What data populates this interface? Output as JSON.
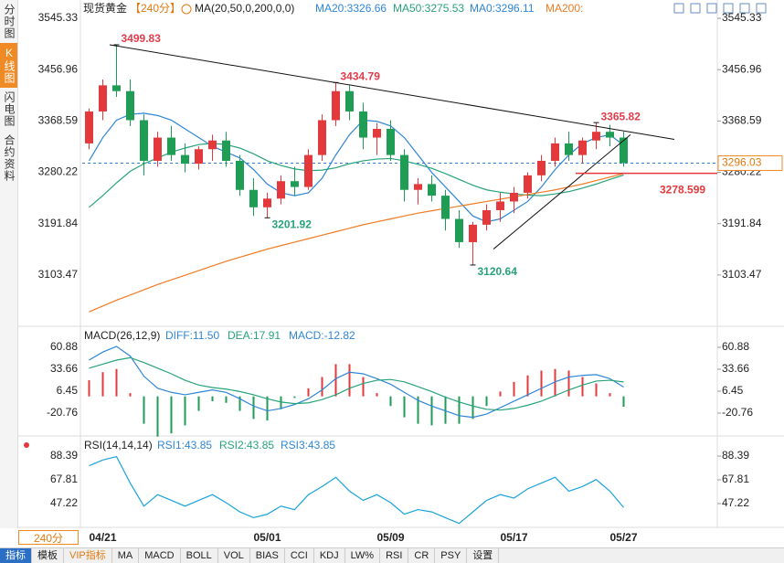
{
  "tabs": [
    "分时图",
    "K线图",
    "闪电图",
    "合约资料"
  ],
  "period": "240分",
  "toolbar": [
    "指标",
    "模板",
    "VIP指标",
    "MA",
    "MACD",
    "BOLL",
    "VOL",
    "BIAS",
    "CCI",
    "KDJ",
    "LW%",
    "RSI",
    "CR",
    "PSY",
    "设置"
  ],
  "chart_data": [
    {
      "type": "candlestick",
      "title": "现货黄金",
      "subtitle": "【240分】",
      "legend": [
        "MA(20,50,0,200,0,0)",
        "MA20:3326.66",
        "MA50:3275.53",
        "MA0:3296.11",
        "MA200:"
      ],
      "categories": [
        null,
        "04/21",
        null,
        null,
        null,
        null,
        null,
        null,
        null,
        null,
        null,
        null,
        null,
        "05/01",
        null,
        null,
        null,
        null,
        null,
        null,
        null,
        null,
        "05/09",
        null,
        null,
        null,
        null,
        null,
        null,
        null,
        null,
        "05/17",
        null,
        null,
        null,
        null,
        null,
        null,
        null,
        "05/27"
      ],
      "open": [
        3330,
        3385,
        3430,
        3420,
        3370,
        3300,
        3340,
        3310,
        3295,
        3320,
        3335,
        3300,
        3250,
        3220,
        3235,
        3265,
        3255,
        3310,
        3370,
        3420,
        3385,
        3340,
        3355,
        3310,
        3250,
        3260,
        3240,
        3200,
        3160,
        3190,
        3215,
        3230,
        3245,
        3275,
        3300,
        3330,
        3310,
        3335,
        3350,
        3340
      ],
      "high": [
        3390,
        3440,
        3499.83,
        3440,
        3380,
        3350,
        3360,
        3330,
        3325,
        3345,
        3350,
        3310,
        3270,
        3245,
        3275,
        3290,
        3320,
        3380,
        3434.79,
        3430,
        3400,
        3365,
        3370,
        3320,
        3270,
        3275,
        3250,
        3215,
        3195,
        3225,
        3245,
        3255,
        3280,
        3310,
        3340,
        3350,
        3340,
        3365.82,
        3362,
        3350
      ],
      "low": [
        3320,
        3370,
        3410,
        3360,
        3275,
        3290,
        3300,
        3280,
        3285,
        3300,
        3290,
        3240,
        3205,
        3201.92,
        3225,
        3240,
        3250,
        3300,
        3360,
        3370,
        3320,
        3310,
        3300,
        3230,
        3225,
        3230,
        3180,
        3150,
        3120.64,
        3180,
        3195,
        3210,
        3235,
        3265,
        3290,
        3300,
        3295,
        3320,
        3325,
        3290
      ],
      "close": [
        3385,
        3430,
        3420,
        3370,
        3300,
        3340,
        3310,
        3295,
        3320,
        3335,
        3300,
        3250,
        3220,
        3235,
        3265,
        3255,
        3310,
        3370,
        3420,
        3385,
        3340,
        3355,
        3310,
        3250,
        3260,
        3240,
        3200,
        3160,
        3190,
        3215,
        3230,
        3245,
        3275,
        3300,
        3330,
        3310,
        3335,
        3350,
        3340,
        3296.11
      ],
      "up_color": "#e4393c",
      "down_color": "#1f9d55",
      "labeled_points": [
        {
          "index": 2,
          "key": "high"
        },
        {
          "index": 18,
          "key": "high"
        },
        {
          "index": 13,
          "key": "low"
        },
        {
          "index": 28,
          "key": "low"
        },
        {
          "index": 37,
          "key": "high"
        }
      ],
      "series": [
        {
          "color": "#2f86d6",
          "values": [
            3300,
            3340,
            3370,
            3380,
            3382,
            3378,
            3370,
            3355,
            3340,
            3325,
            3315,
            3305,
            3285,
            3260,
            3245,
            3240,
            3245,
            3270,
            3310,
            3345,
            3370,
            3368,
            3360,
            3340,
            3310,
            3280,
            3255,
            3230,
            3205,
            3195,
            3200,
            3215,
            3230,
            3255,
            3285,
            3310,
            3330,
            3340,
            3345,
            3326.66
          ]
        },
        {
          "color": "#27a37a",
          "values": [
            3220,
            3240,
            3262,
            3282,
            3295,
            3305,
            3315,
            3322,
            3328,
            3330,
            3328,
            3322,
            3312,
            3300,
            3292,
            3286,
            3283,
            3284,
            3288,
            3295,
            3300,
            3303,
            3304,
            3300,
            3294,
            3287,
            3278,
            3268,
            3258,
            3250,
            3246,
            3243,
            3241,
            3240,
            3243,
            3247,
            3253,
            3260,
            3268,
            3275.53
          ]
        },
        {
          "color": "#f07b22",
          "values": [
            3040,
            3050,
            3060,
            3069,
            3078,
            3087,
            3095,
            3103,
            3111,
            3119,
            3127,
            3134,
            3141,
            3148,
            3154,
            3160,
            3166,
            3172,
            3178,
            3184,
            3190,
            3195,
            3200,
            3205,
            3210,
            3214,
            3218,
            3222,
            3226,
            3230,
            3234,
            3238,
            3242,
            3246,
            3250,
            3255,
            3260,
            3266,
            3272,
            3278
          ]
        }
      ],
      "trendlines": [
        [
          [
            1.5,
            3499.83
          ],
          [
            42.7,
            3337
          ]
        ],
        [
          [
            29.5,
            3148
          ],
          [
            39.5,
            3345
          ]
        ]
      ],
      "current_price": 3296.03,
      "support": {
        "value": 3278.599,
        "from": 35.5
      },
      "ylim": [
        3023,
        3564.3
      ],
      "yticks": [
        3545.33,
        3456.96,
        3368.59,
        3280.22,
        3191.84,
        3103.47
      ]
    },
    {
      "type": "macd",
      "legend": [
        "MACD(26,12,9)",
        "DIFF:11.50",
        "DEA:17.91",
        "MACD:-12.82"
      ],
      "series": [
        {
          "kind": "bar",
          "color": "#e4393c",
          "down_color": "#1f9d55",
          "values": [
            20,
            30,
            34,
            4,
            -34,
            -50,
            -46,
            -36,
            -18,
            -6,
            -8,
            -18,
            -28,
            -30,
            -16,
            -2,
            10,
            24,
            40,
            40,
            24,
            4,
            -12,
            -26,
            -34,
            -36,
            -34,
            -34,
            -28,
            -12,
            6,
            18,
            26,
            32,
            34,
            32,
            24,
            16,
            4,
            -12.82
          ]
        },
        {
          "kind": "line",
          "color": "#2f86d6",
          "values": [
            45,
            55,
            62,
            50,
            25,
            10,
            5,
            2,
            5,
            8,
            5,
            -3,
            -12,
            -18,
            -15,
            -10,
            -3,
            8,
            22,
            30,
            28,
            22,
            15,
            5,
            -5,
            -12,
            -18,
            -24,
            -26,
            -22,
            -14,
            -6,
            2,
            10,
            18,
            24,
            26,
            27,
            22,
            11.5
          ]
        },
        {
          "kind": "line",
          "color": "#27a37a",
          "values": [
            35,
            40,
            45,
            48,
            42,
            35,
            28,
            20,
            14,
            11,
            9,
            6,
            2,
            -3,
            -7,
            -9,
            -8,
            -4,
            2,
            10,
            16,
            20,
            21,
            18,
            12,
            6,
            -1,
            -7,
            -12,
            -16,
            -17,
            -15,
            -11,
            -6,
            1,
            8,
            14,
            19,
            20,
            17.91
          ]
        }
      ],
      "ylim": [
        -48,
        77.9
      ],
      "yticks": [
        60.88,
        33.66,
        6.45,
        -20.76
      ]
    },
    {
      "type": "line",
      "legend": [
        "RSI(14,14,14)",
        "RSI1:43.85",
        "RSI2:43.85",
        "RSI3:43.85"
      ],
      "series": [
        {
          "color": "#1aa3d9",
          "values": [
            80,
            85,
            88,
            65,
            45,
            55,
            50,
            45,
            50,
            55,
            48,
            40,
            35,
            38,
            45,
            42,
            55,
            62,
            70,
            58,
            50,
            55,
            48,
            38,
            42,
            40,
            35,
            30,
            40,
            50,
            55,
            52,
            60,
            65,
            70,
            58,
            62,
            68,
            58,
            43.85
          ]
        }
      ],
      "ylim": [
        28.2,
        99.5
      ],
      "yticks": [
        88.39,
        67.81,
        47.22
      ]
    }
  ]
}
